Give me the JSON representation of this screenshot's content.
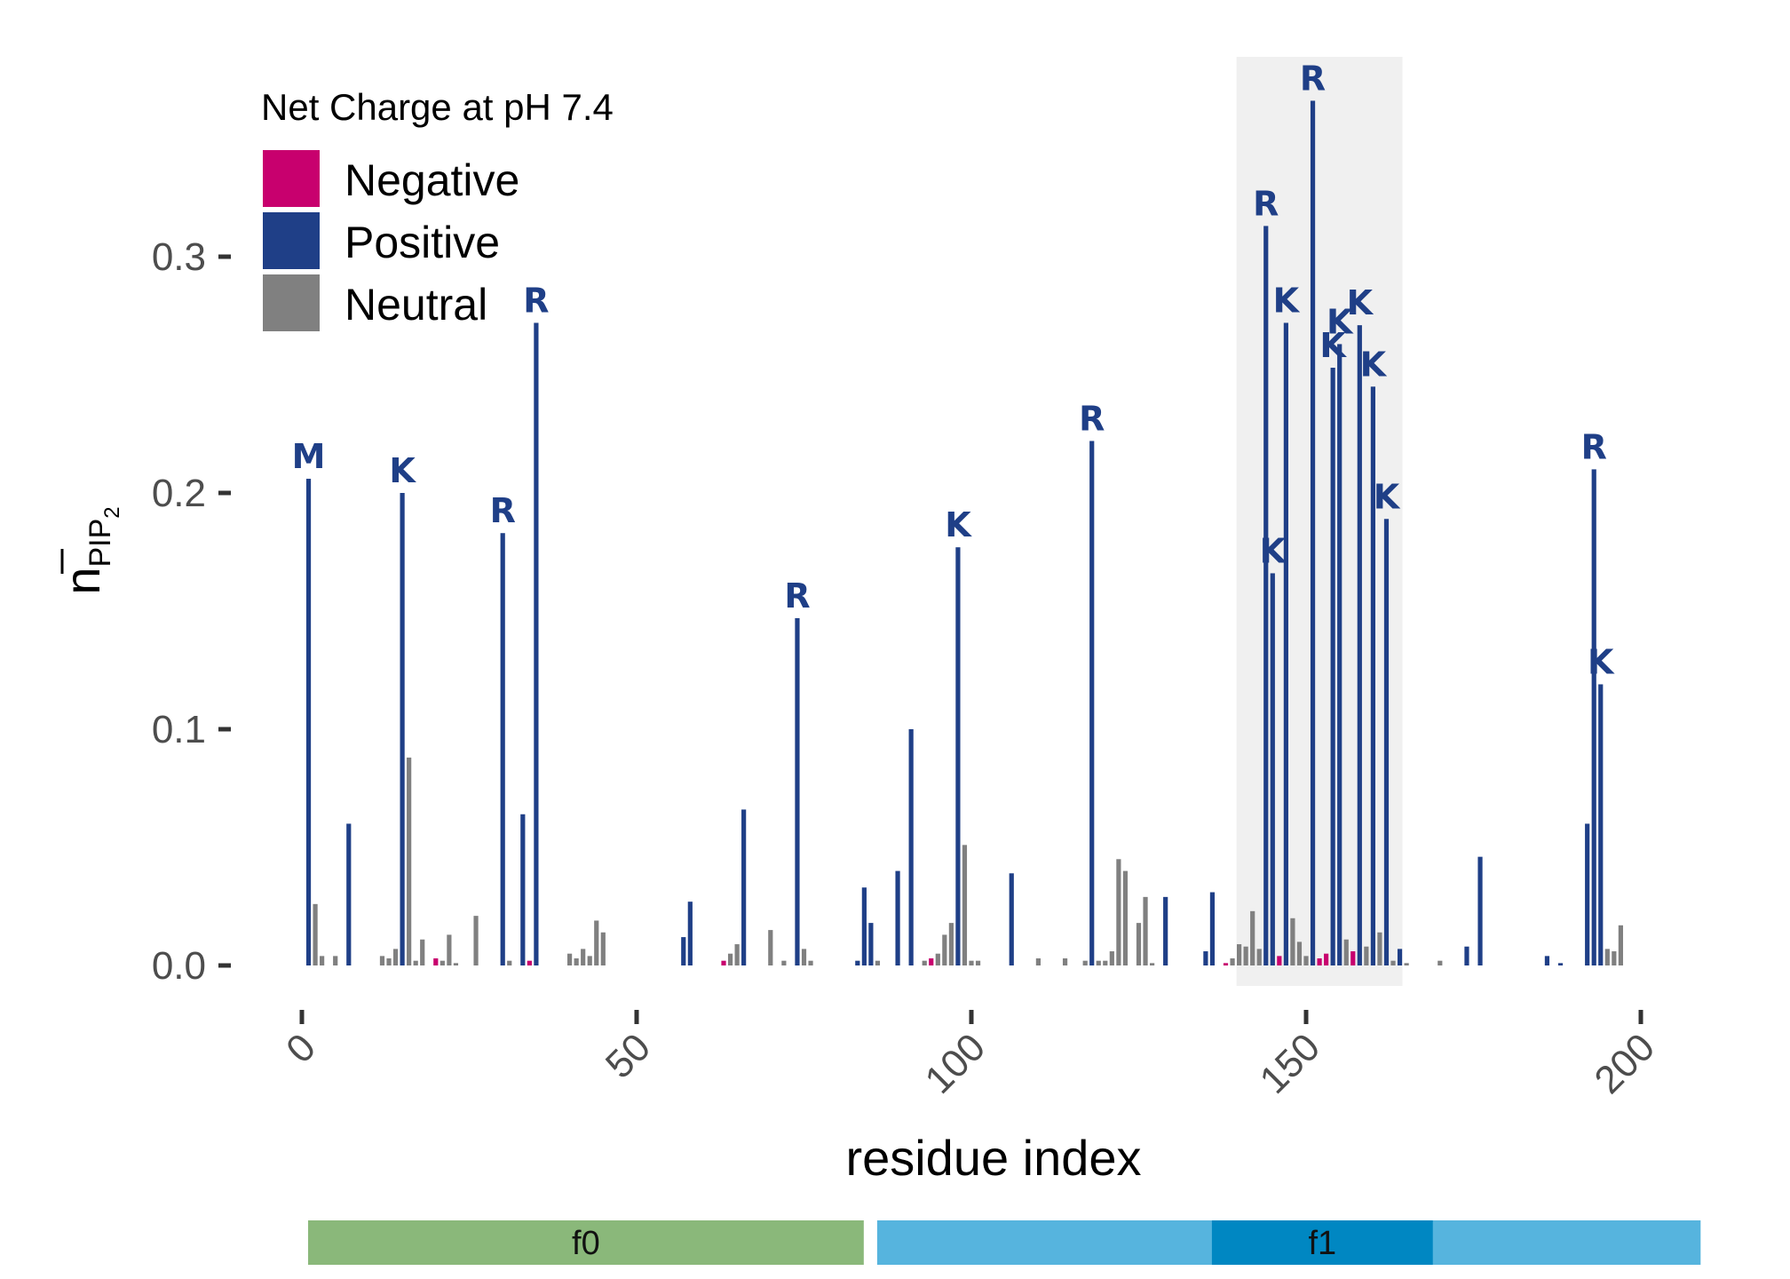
{
  "chart_data": {
    "type": "bar",
    "xlabel": "residue index",
    "ylabel": "n̄PIP2",
    "xlim": [
      -5,
      205
    ],
    "ylim": [
      -0.012,
      0.37
    ],
    "x_ticks": [
      0,
      50,
      100,
      150,
      200
    ],
    "y_ticks": [
      0.0,
      0.1,
      0.2,
      0.3
    ],
    "x_tick_labels": [
      "0",
      "50",
      "100",
      "150",
      "200"
    ],
    "y_tick_labels": [
      "0.0",
      "0.1",
      "0.2",
      "0.3"
    ],
    "grid": false,
    "highlight_region": [
      140,
      164
    ],
    "legend": {
      "title": "Net Charge at pH 7.4",
      "placement": "top-left",
      "entries": [
        {
          "name": "Negative",
          "color": "#c8006e"
        },
        {
          "name": "Positive",
          "color": "#1f3f87"
        },
        {
          "name": "Neutral",
          "color": "#808080"
        }
      ]
    },
    "colors": {
      "Negative": "#c8006e",
      "Positive": "#1f3f87",
      "Neutral": "#808080"
    },
    "bars": [
      {
        "x": 1,
        "y": 0.206,
        "charge": "Positive",
        "label": "M"
      },
      {
        "x": 2,
        "y": 0.026,
        "charge": "Neutral"
      },
      {
        "x": 3,
        "y": 0.004,
        "charge": "Neutral"
      },
      {
        "x": 5,
        "y": 0.004,
        "charge": "Neutral"
      },
      {
        "x": 7,
        "y": 0.06,
        "charge": "Positive"
      },
      {
        "x": 12,
        "y": 0.004,
        "charge": "Neutral"
      },
      {
        "x": 13,
        "y": 0.003,
        "charge": "Neutral"
      },
      {
        "x": 14,
        "y": 0.007,
        "charge": "Neutral"
      },
      {
        "x": 15,
        "y": 0.2,
        "charge": "Positive",
        "label": "K"
      },
      {
        "x": 16,
        "y": 0.088,
        "charge": "Neutral"
      },
      {
        "x": 17,
        "y": 0.002,
        "charge": "Neutral"
      },
      {
        "x": 18,
        "y": 0.011,
        "charge": "Neutral"
      },
      {
        "x": 20,
        "y": 0.003,
        "charge": "Negative"
      },
      {
        "x": 21,
        "y": 0.002,
        "charge": "Neutral"
      },
      {
        "x": 22,
        "y": 0.013,
        "charge": "Neutral"
      },
      {
        "x": 23,
        "y": 0.001,
        "charge": "Neutral"
      },
      {
        "x": 26,
        "y": 0.021,
        "charge": "Neutral"
      },
      {
        "x": 30,
        "y": 0.183,
        "charge": "Positive",
        "label": "R"
      },
      {
        "x": 31,
        "y": 0.002,
        "charge": "Neutral"
      },
      {
        "x": 33,
        "y": 0.064,
        "charge": "Positive"
      },
      {
        "x": 34,
        "y": 0.002,
        "charge": "Negative"
      },
      {
        "x": 35,
        "y": 0.272,
        "charge": "Positive",
        "label": "R"
      },
      {
        "x": 40,
        "y": 0.005,
        "charge": "Neutral"
      },
      {
        "x": 41,
        "y": 0.003,
        "charge": "Neutral"
      },
      {
        "x": 42,
        "y": 0.007,
        "charge": "Neutral"
      },
      {
        "x": 43,
        "y": 0.004,
        "charge": "Neutral"
      },
      {
        "x": 44,
        "y": 0.019,
        "charge": "Neutral"
      },
      {
        "x": 45,
        "y": 0.014,
        "charge": "Neutral"
      },
      {
        "x": 57,
        "y": 0.012,
        "charge": "Positive"
      },
      {
        "x": 58,
        "y": 0.027,
        "charge": "Positive"
      },
      {
        "x": 63,
        "y": 0.002,
        "charge": "Negative"
      },
      {
        "x": 64,
        "y": 0.005,
        "charge": "Neutral"
      },
      {
        "x": 65,
        "y": 0.009,
        "charge": "Neutral"
      },
      {
        "x": 66,
        "y": 0.066,
        "charge": "Positive"
      },
      {
        "x": 70,
        "y": 0.015,
        "charge": "Neutral"
      },
      {
        "x": 72,
        "y": 0.002,
        "charge": "Neutral"
      },
      {
        "x": 74,
        "y": 0.147,
        "charge": "Positive",
        "label": "R"
      },
      {
        "x": 75,
        "y": 0.007,
        "charge": "Neutral"
      },
      {
        "x": 76,
        "y": 0.002,
        "charge": "Neutral"
      },
      {
        "x": 83,
        "y": 0.002,
        "charge": "Positive"
      },
      {
        "x": 84,
        "y": 0.033,
        "charge": "Positive"
      },
      {
        "x": 85,
        "y": 0.018,
        "charge": "Positive"
      },
      {
        "x": 86,
        "y": 0.002,
        "charge": "Neutral"
      },
      {
        "x": 89,
        "y": 0.04,
        "charge": "Positive"
      },
      {
        "x": 91,
        "y": 0.1,
        "charge": "Positive"
      },
      {
        "x": 93,
        "y": 0.002,
        "charge": "Neutral"
      },
      {
        "x": 94,
        "y": 0.003,
        "charge": "Negative"
      },
      {
        "x": 95,
        "y": 0.005,
        "charge": "Neutral"
      },
      {
        "x": 96,
        "y": 0.013,
        "charge": "Neutral"
      },
      {
        "x": 97,
        "y": 0.018,
        "charge": "Neutral"
      },
      {
        "x": 98,
        "y": 0.177,
        "charge": "Positive",
        "label": "K"
      },
      {
        "x": 99,
        "y": 0.051,
        "charge": "Neutral"
      },
      {
        "x": 100,
        "y": 0.002,
        "charge": "Neutral"
      },
      {
        "x": 101,
        "y": 0.002,
        "charge": "Neutral"
      },
      {
        "x": 106,
        "y": 0.039,
        "charge": "Positive"
      },
      {
        "x": 110,
        "y": 0.003,
        "charge": "Neutral"
      },
      {
        "x": 114,
        "y": 0.003,
        "charge": "Neutral"
      },
      {
        "x": 117,
        "y": 0.002,
        "charge": "Neutral"
      },
      {
        "x": 118,
        "y": 0.222,
        "charge": "Positive",
        "label": "R"
      },
      {
        "x": 119,
        "y": 0.002,
        "charge": "Neutral"
      },
      {
        "x": 120,
        "y": 0.002,
        "charge": "Neutral"
      },
      {
        "x": 121,
        "y": 0.006,
        "charge": "Neutral"
      },
      {
        "x": 122,
        "y": 0.045,
        "charge": "Neutral"
      },
      {
        "x": 123,
        "y": 0.04,
        "charge": "Neutral"
      },
      {
        "x": 125,
        "y": 0.018,
        "charge": "Neutral"
      },
      {
        "x": 126,
        "y": 0.029,
        "charge": "Neutral"
      },
      {
        "x": 127,
        "y": 0.001,
        "charge": "Neutral"
      },
      {
        "x": 129,
        "y": 0.029,
        "charge": "Positive"
      },
      {
        "x": 135,
        "y": 0.006,
        "charge": "Positive"
      },
      {
        "x": 136,
        "y": 0.031,
        "charge": "Positive"
      },
      {
        "x": 138,
        "y": 0.001,
        "charge": "Negative"
      },
      {
        "x": 139,
        "y": 0.003,
        "charge": "Neutral"
      },
      {
        "x": 140,
        "y": 0.009,
        "charge": "Neutral"
      },
      {
        "x": 141,
        "y": 0.008,
        "charge": "Neutral"
      },
      {
        "x": 142,
        "y": 0.023,
        "charge": "Neutral"
      },
      {
        "x": 143,
        "y": 0.007,
        "charge": "Neutral"
      },
      {
        "x": 144,
        "y": 0.313,
        "charge": "Positive",
        "label": "R"
      },
      {
        "x": 145,
        "y": 0.166,
        "charge": "Positive",
        "label": "K"
      },
      {
        "x": 146,
        "y": 0.004,
        "charge": "Negative"
      },
      {
        "x": 147,
        "y": 0.272,
        "charge": "Positive",
        "label": "K"
      },
      {
        "x": 148,
        "y": 0.02,
        "charge": "Neutral"
      },
      {
        "x": 149,
        "y": 0.01,
        "charge": "Neutral"
      },
      {
        "x": 150,
        "y": 0.004,
        "charge": "Neutral"
      },
      {
        "x": 151,
        "y": 0.366,
        "charge": "Positive",
        "label": "R"
      },
      {
        "x": 152,
        "y": 0.003,
        "charge": "Negative"
      },
      {
        "x": 153,
        "y": 0.005,
        "charge": "Negative"
      },
      {
        "x": 154,
        "y": 0.253,
        "charge": "Positive",
        "label": "K"
      },
      {
        "x": 155,
        "y": 0.263,
        "charge": "Positive",
        "label": "K"
      },
      {
        "x": 156,
        "y": 0.011,
        "charge": "Neutral"
      },
      {
        "x": 157,
        "y": 0.006,
        "charge": "Negative"
      },
      {
        "x": 158,
        "y": 0.271,
        "charge": "Positive",
        "label": "K"
      },
      {
        "x": 159,
        "y": 0.008,
        "charge": "Neutral"
      },
      {
        "x": 160,
        "y": 0.245,
        "charge": "Positive",
        "label": "K"
      },
      {
        "x": 161,
        "y": 0.014,
        "charge": "Neutral"
      },
      {
        "x": 162,
        "y": 0.189,
        "charge": "Positive",
        "label": "K"
      },
      {
        "x": 163,
        "y": 0.002,
        "charge": "Neutral"
      },
      {
        "x": 164,
        "y": 0.007,
        "charge": "Positive"
      },
      {
        "x": 165,
        "y": 0.001,
        "charge": "Neutral"
      },
      {
        "x": 170,
        "y": 0.002,
        "charge": "Neutral"
      },
      {
        "x": 174,
        "y": 0.008,
        "charge": "Positive"
      },
      {
        "x": 176,
        "y": 0.046,
        "charge": "Positive"
      },
      {
        "x": 186,
        "y": 0.004,
        "charge": "Positive"
      },
      {
        "x": 188,
        "y": 0.001,
        "charge": "Positive"
      },
      {
        "x": 192,
        "y": 0.06,
        "charge": "Positive"
      },
      {
        "x": 193,
        "y": 0.21,
        "charge": "Positive",
        "label": "R"
      },
      {
        "x": 194,
        "y": 0.119,
        "charge": "Positive",
        "label": "K"
      },
      {
        "x": 195,
        "y": 0.007,
        "charge": "Neutral"
      },
      {
        "x": 196,
        "y": 0.006,
        "charge": "Neutral"
      },
      {
        "x": 197,
        "y": 0.017,
        "charge": "Neutral"
      }
    ],
    "segments": [
      {
        "label": "f0",
        "start": 0,
        "end": 83,
        "color": "#8ab87a"
      },
      {
        "label": "f1",
        "start": 85,
        "end": 208,
        "color": "#56b4de",
        "core": [
          135,
          168
        ],
        "core_color": "#0087c2"
      }
    ]
  }
}
